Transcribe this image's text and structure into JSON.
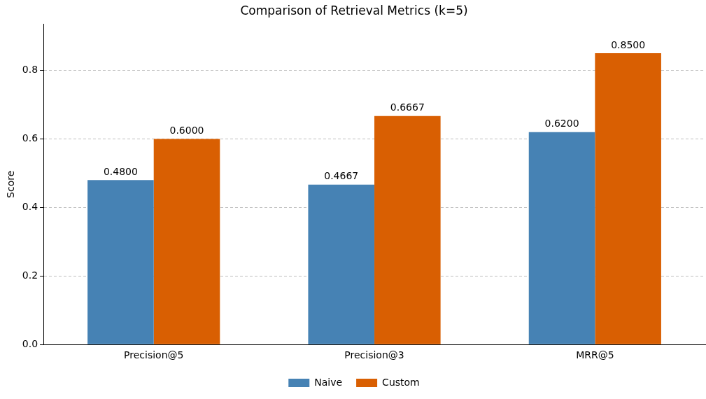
{
  "chart_data": {
    "type": "bar",
    "title": "Comparison of Retrieval Metrics (k=5)",
    "ylabel": "Score",
    "categories": [
      "Precision@5",
      "Precision@3",
      "MRR@5"
    ],
    "series": [
      {
        "name": "Naive",
        "color": "#4682b4",
        "values": [
          0.48,
          0.4667,
          0.62
        ],
        "value_labels": [
          "0.4800",
          "0.4667",
          "0.6200"
        ]
      },
      {
        "name": "Custom",
        "color": "#d95f02",
        "values": [
          0.6,
          0.6667,
          0.85
        ],
        "value_labels": [
          "0.6000",
          "0.6667",
          "0.8500"
        ]
      }
    ],
    "ylim": [
      0,
      0.935
    ],
    "yticks": [
      {
        "value": 0,
        "label": "0.0"
      },
      {
        "value": 0.2,
        "label": "0.2"
      },
      {
        "value": 0.4,
        "label": "0.4"
      },
      {
        "value": 0.6,
        "label": "0.6"
      },
      {
        "value": 0.8,
        "label": "0.8"
      }
    ],
    "grid": "y",
    "legend": "bottom"
  }
}
